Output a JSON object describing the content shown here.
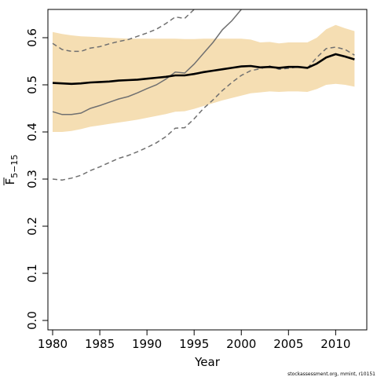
{
  "chart_data": {
    "type": "line",
    "xlabel": "Year",
    "ylabel_base": "F",
    "ylabel_sub": "5−15",
    "xlim": [
      1979.5,
      2013.3
    ],
    "ylim": [
      -0.02,
      0.66
    ],
    "xticks": [
      1980,
      1985,
      1990,
      1995,
      2000,
      2005,
      2010
    ],
    "yticks": [
      0.0,
      0.1,
      0.2,
      0.3,
      0.4,
      0.5,
      0.6
    ],
    "ytick_labels": [
      "0.0",
      "0.1",
      "0.2",
      "0.3",
      "0.4",
      "0.5",
      "0.6"
    ],
    "grid": false,
    "colors": {
      "band": "#f5deb3",
      "main": "#000000",
      "retro": "#707070"
    },
    "x": [
      1980,
      1981,
      1982,
      1983,
      1984,
      1985,
      1986,
      1987,
      1988,
      1989,
      1990,
      1991,
      1992,
      1993,
      1994,
      1995,
      1996,
      1997,
      1998,
      1999,
      2000,
      2001,
      2002,
      2003,
      2004,
      2005,
      2006,
      2007,
      2008,
      2009,
      2010,
      2011,
      2012
    ],
    "band_upper": [
      0.612,
      0.608,
      0.605,
      0.603,
      0.602,
      0.601,
      0.6,
      0.599,
      0.598,
      0.598,
      0.598,
      0.598,
      0.598,
      0.598,
      0.597,
      0.597,
      0.598,
      0.598,
      0.598,
      0.598,
      0.598,
      0.596,
      0.59,
      0.591,
      0.588,
      0.59,
      0.59,
      0.59,
      0.6,
      0.618,
      0.627,
      0.62,
      0.614
    ],
    "band_lower": [
      0.4,
      0.4,
      0.402,
      0.406,
      0.411,
      0.414,
      0.417,
      0.42,
      0.423,
      0.426,
      0.43,
      0.434,
      0.438,
      0.443,
      0.444,
      0.449,
      0.455,
      0.461,
      0.467,
      0.472,
      0.477,
      0.482,
      0.484,
      0.486,
      0.485,
      0.486,
      0.486,
      0.485,
      0.491,
      0.5,
      0.502,
      0.5,
      0.496
    ],
    "series": [
      {
        "style": "main",
        "values": [
          0.504,
          0.503,
          0.502,
          0.503,
          0.505,
          0.506,
          0.507,
          0.509,
          0.51,
          0.511,
          0.513,
          0.515,
          0.517,
          0.52,
          0.52,
          0.523,
          0.527,
          0.53,
          0.533,
          0.536,
          0.539,
          0.54,
          0.537,
          0.538,
          0.536,
          0.538,
          0.538,
          0.536,
          0.545,
          0.558,
          0.565,
          0.56,
          0.554
        ]
      },
      {
        "style": "retro_solid",
        "values": [
          0.443,
          0.437,
          0.437,
          0.44,
          0.45,
          0.456,
          0.463,
          0.47,
          0.475,
          0.483,
          0.492,
          0.5,
          0.512,
          0.527,
          0.525,
          0.544,
          0.567,
          0.59,
          0.617,
          0.636,
          0.66,
          0.68,
          0.7,
          0.7,
          0.7,
          0.7,
          0.7,
          0.7,
          0.7,
          0.7,
          0.7,
          0.7,
          0.7
        ]
      },
      {
        "style": "retro_dashed",
        "values": [
          0.3,
          0.298,
          0.302,
          0.308,
          0.318,
          0.326,
          0.335,
          0.344,
          0.35,
          0.358,
          0.367,
          0.377,
          0.39,
          0.408,
          0.409,
          0.428,
          0.45,
          0.468,
          0.488,
          0.505,
          0.52,
          0.53,
          0.534,
          0.54,
          0.533,
          0.535,
          0.538,
          0.535,
          0.558,
          0.577,
          0.58,
          0.575,
          0.563
        ]
      },
      {
        "style": "retro_dashed",
        "values": [
          0.588,
          0.575,
          0.571,
          0.571,
          0.578,
          0.581,
          0.587,
          0.592,
          0.596,
          0.603,
          0.61,
          0.618,
          0.63,
          0.644,
          0.641,
          0.66,
          0.7,
          0.7,
          0.7,
          0.7,
          0.7,
          0.7,
          0.7,
          0.7,
          0.7,
          0.7,
          0.7,
          0.7,
          0.7,
          0.7,
          0.7,
          0.7,
          0.7
        ]
      }
    ]
  },
  "credit": "stockassessment.org, mmint, r10151"
}
